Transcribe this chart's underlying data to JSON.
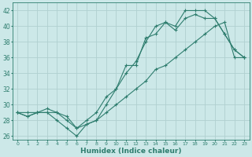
{
  "xlabel": "Humidex (Indice chaleur)",
  "bg_color": "#cce8e8",
  "grid_color": "#b0d0d0",
  "line_color": "#2e7d6e",
  "xlim": [
    -0.5,
    23.5
  ],
  "ylim": [
    25.5,
    43.0
  ],
  "xticks": [
    0,
    1,
    2,
    3,
    4,
    5,
    6,
    7,
    8,
    9,
    10,
    11,
    12,
    13,
    14,
    15,
    16,
    17,
    18,
    19,
    20,
    21,
    22,
    23
  ],
  "yticks": [
    26,
    28,
    30,
    32,
    34,
    36,
    38,
    40,
    42
  ],
  "line1_x": [
    0,
    1,
    2,
    3,
    4,
    5,
    6,
    7,
    8,
    9,
    10,
    11,
    12,
    13,
    14,
    15,
    16,
    17,
    18,
    19,
    20,
    21,
    22,
    23
  ],
  "line1_y": [
    29,
    28.5,
    29,
    29,
    28,
    27,
    26,
    27.5,
    28,
    30,
    32,
    35,
    35,
    38.5,
    39,
    40.5,
    39.5,
    41,
    41.5,
    41,
    41,
    39,
    37,
    36
  ],
  "line2_x": [
    0,
    1,
    2,
    3,
    4,
    5,
    6,
    7,
    8,
    9,
    10,
    11,
    12,
    13,
    14,
    15,
    16,
    17,
    18,
    19,
    20,
    21,
    22,
    23
  ],
  "line2_y": [
    29,
    28.5,
    29,
    29.5,
    29,
    28,
    27,
    28,
    29,
    31,
    32,
    34,
    35.5,
    38,
    40,
    40.5,
    40,
    42,
    42,
    42,
    41,
    39,
    37,
    36
  ],
  "line3_x": [
    0,
    1,
    2,
    3,
    4,
    5,
    6,
    7,
    8,
    9,
    10,
    11,
    12,
    13,
    14,
    15,
    16,
    17,
    18,
    19,
    20,
    21,
    22,
    23
  ],
  "line3_y": [
    29,
    29,
    29,
    29,
    29,
    28.5,
    27,
    27.5,
    28,
    29,
    30,
    31,
    32,
    33,
    34.5,
    35,
    36,
    37,
    38,
    39,
    40,
    40.5,
    36,
    36
  ]
}
